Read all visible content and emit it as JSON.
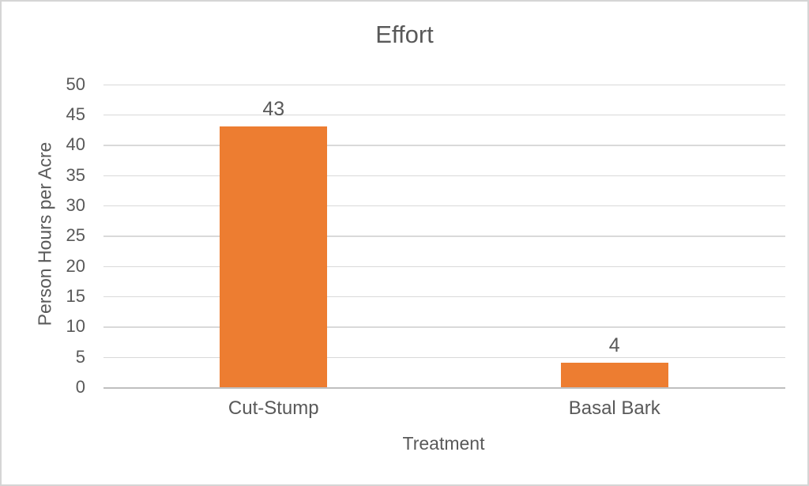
{
  "chart_data": {
    "type": "bar",
    "title": "Effort",
    "categories": [
      "Cut-Stump",
      "Basal Bark"
    ],
    "values": [
      43,
      4
    ],
    "data_labels": [
      "43",
      "4"
    ],
    "xlabel": "Treatment",
    "ylabel": "Person Hours per Acre",
    "ylim": [
      0,
      50
    ],
    "ytick_step": 5,
    "yticks": [
      0,
      5,
      10,
      15,
      20,
      25,
      30,
      35,
      40,
      45,
      50
    ],
    "grid": "horizontal",
    "legend_position": "none",
    "colors": {
      "bar": "#ED7D31",
      "text": "#595959",
      "gridline": "#D9D9D9",
      "axis_line": "#BFBFBF",
      "background": "#FFFFFF",
      "border": "#D5D5D5"
    }
  }
}
